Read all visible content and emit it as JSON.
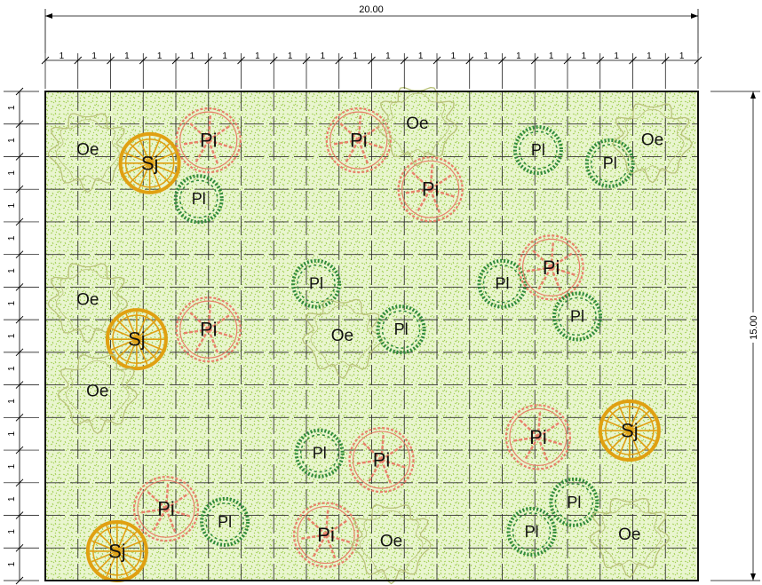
{
  "plan": {
    "overall_width_label": "20.00",
    "overall_height_label": "15.00",
    "module_label": "1",
    "columns": 20,
    "rows": 15
  },
  "colors": {
    "ground": "#e9f5cf",
    "ground_speckle": "#9ccc4a",
    "grid_line": "#333333",
    "Pi": "#e8806a",
    "Pl": "#2f8a3a",
    "Sj": "#e0a012",
    "Oe": "#b9c27a"
  },
  "legend_codes": [
    "Pi",
    "Pl",
    "Sj",
    "Oe"
  ],
  "plants": [
    {
      "code": "Oe",
      "x": 1.3,
      "y": 1.8
    },
    {
      "code": "Sj",
      "x": 3.2,
      "y": 2.2
    },
    {
      "code": "Pi",
      "x": 5.0,
      "y": 1.5
    },
    {
      "code": "Pl",
      "x": 4.7,
      "y": 3.3
    },
    {
      "code": "Pi",
      "x": 9.6,
      "y": 1.5
    },
    {
      "code": "Oe",
      "x": 11.4,
      "y": 1.0
    },
    {
      "code": "Pi",
      "x": 11.8,
      "y": 3.0
    },
    {
      "code": "Pl",
      "x": 15.1,
      "y": 1.8
    },
    {
      "code": "Pl",
      "x": 17.3,
      "y": 2.2
    },
    {
      "code": "Oe",
      "x": 18.6,
      "y": 1.5
    },
    {
      "code": "Oe",
      "x": 1.3,
      "y": 6.4
    },
    {
      "code": "Sj",
      "x": 2.8,
      "y": 7.6
    },
    {
      "code": "Pi",
      "x": 5.0,
      "y": 7.3
    },
    {
      "code": "Pl",
      "x": 8.3,
      "y": 5.9
    },
    {
      "code": "Oe",
      "x": 9.1,
      "y": 7.5
    },
    {
      "code": "Pl",
      "x": 10.9,
      "y": 7.3
    },
    {
      "code": "Pl",
      "x": 14.0,
      "y": 5.9
    },
    {
      "code": "Pi",
      "x": 15.5,
      "y": 5.4
    },
    {
      "code": "Pl",
      "x": 16.3,
      "y": 6.9
    },
    {
      "code": "Oe",
      "x": 1.6,
      "y": 9.2
    },
    {
      "code": "Pi",
      "x": 15.1,
      "y": 10.6
    },
    {
      "code": "Sj",
      "x": 17.9,
      "y": 10.4
    },
    {
      "code": "Pl",
      "x": 8.4,
      "y": 11.1
    },
    {
      "code": "Pi",
      "x": 10.3,
      "y": 11.3
    },
    {
      "code": "Pi",
      "x": 3.7,
      "y": 12.8
    },
    {
      "code": "Pl",
      "x": 5.5,
      "y": 13.2
    },
    {
      "code": "Pi",
      "x": 8.6,
      "y": 13.6
    },
    {
      "code": "Oe",
      "x": 10.6,
      "y": 13.8
    },
    {
      "code": "Pl",
      "x": 16.2,
      "y": 12.6
    },
    {
      "code": "Pl",
      "x": 14.9,
      "y": 13.5
    },
    {
      "code": "Oe",
      "x": 17.9,
      "y": 13.6
    },
    {
      "code": "Sj",
      "x": 2.2,
      "y": 14.1
    }
  ]
}
